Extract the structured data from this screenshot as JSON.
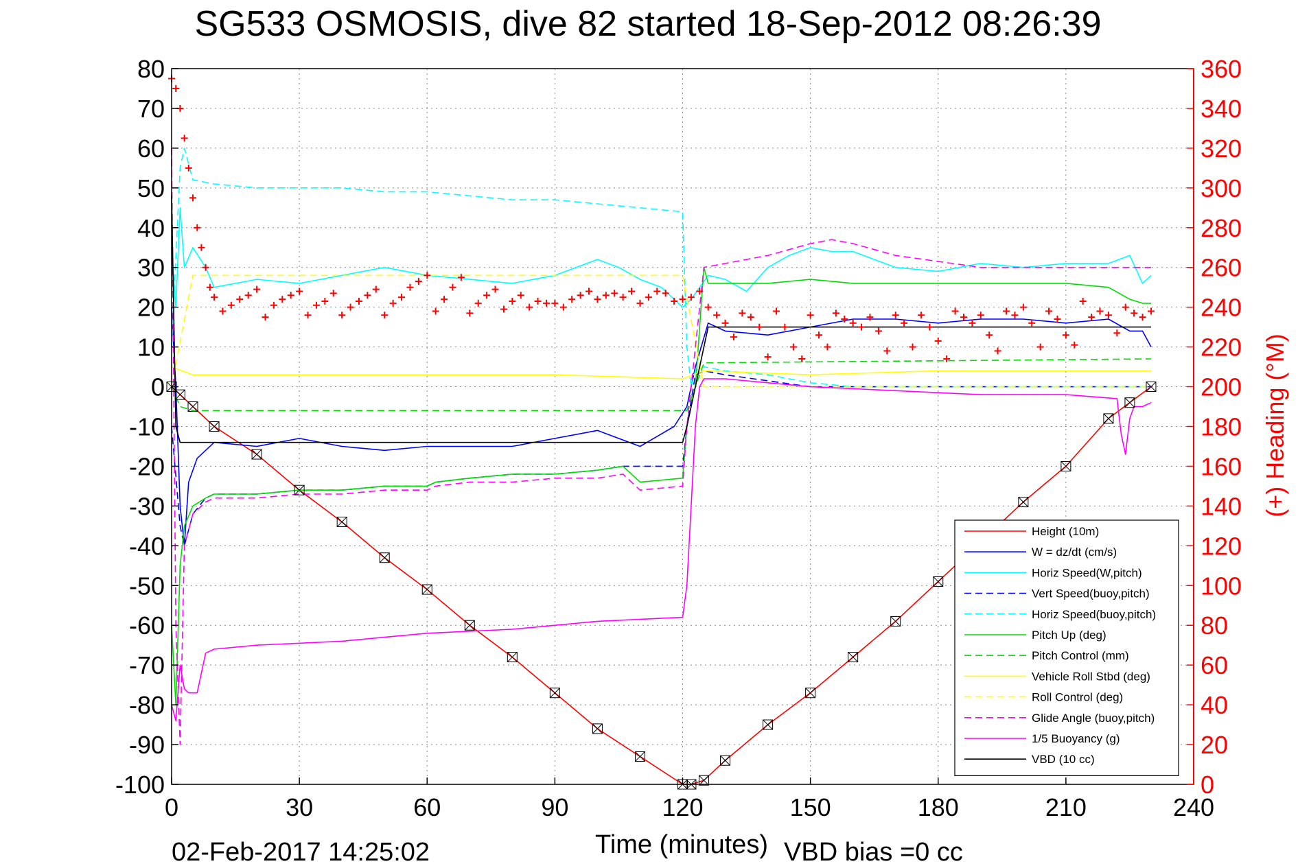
{
  "chart_data": {
    "type": "line",
    "title": "SG533 OSMOSIS, dive 82 started 18-Sep-2012 08:26:39",
    "xlabel": "Time (minutes)",
    "ylabel_right": "(+) Heading (°M)",
    "footer_date": "02-Feb-2017 14:25:02",
    "footer_vbd": "VBD bias =0 cc",
    "xlim": [
      0,
      240
    ],
    "ylim": [
      -100,
      80
    ],
    "y2lim": [
      0,
      360
    ],
    "x_ticks": [
      "0",
      "30",
      "60",
      "90",
      "120",
      "150",
      "180",
      "210",
      "240"
    ],
    "x_tick_values": [
      0,
      30,
      60,
      90,
      120,
      150,
      180,
      210,
      240
    ],
    "y_ticks": [
      "80",
      "70",
      "60",
      "50",
      "40",
      "30",
      "20",
      "10",
      "0",
      "-10",
      "-20",
      "-30",
      "-40",
      "-50",
      "-60",
      "-70",
      "-80",
      "-90",
      "-100"
    ],
    "y_tick_values": [
      80,
      70,
      60,
      50,
      40,
      30,
      20,
      10,
      0,
      -10,
      -20,
      -30,
      -40,
      -50,
      -60,
      -70,
      -80,
      -90,
      -100
    ],
    "y2_ticks": [
      "360",
      "340",
      "320",
      "300",
      "280",
      "260",
      "240",
      "220",
      "200",
      "180",
      "160",
      "140",
      "120",
      "100",
      "80",
      "60",
      "40",
      "20",
      "0"
    ],
    "y2_tick_values": [
      360,
      340,
      320,
      300,
      280,
      260,
      240,
      220,
      200,
      180,
      160,
      140,
      120,
      100,
      80,
      60,
      40,
      20,
      0
    ],
    "grid": true,
    "legend_position": "bottom-right",
    "series": [
      {
        "name": "Height (10m)",
        "color": "#ff0000",
        "style": "solid",
        "x": [
          0,
          2,
          5,
          10,
          20,
          30,
          40,
          50,
          60,
          70,
          80,
          90,
          100,
          110,
          120,
          122,
          125,
          130,
          140,
          150,
          160,
          170,
          180,
          190,
          200,
          210,
          220,
          225,
          230
        ],
        "values": [
          0,
          -2,
          -5,
          -10,
          -17,
          -26,
          -34,
          -43,
          -51,
          -60,
          -68,
          -77,
          -86,
          -93,
          -100,
          -100,
          -99,
          -94,
          -85,
          -77,
          -68,
          -59,
          -49,
          -39,
          -29,
          -20,
          -8,
          -4,
          0
        ]
      },
      {
        "name": "W = dz/dt (cm/s)",
        "color": "#0000ff",
        "style": "solid",
        "x": [
          0,
          1,
          2,
          3,
          4,
          6,
          10,
          20,
          30,
          40,
          50,
          60,
          70,
          80,
          90,
          100,
          110,
          118,
          121,
          123,
          126,
          130,
          140,
          150,
          160,
          170,
          180,
          190,
          200,
          210,
          220,
          225,
          228,
          230
        ],
        "values": [
          20,
          0,
          -30,
          -40,
          -24,
          -18,
          -14,
          -15,
          -13,
          -15,
          -16,
          -15,
          -15,
          -15,
          -13,
          -11,
          -15,
          -10,
          -5,
          5,
          16,
          14,
          13,
          15,
          17,
          17,
          16,
          17,
          17,
          16,
          17,
          14,
          14,
          10
        ]
      },
      {
        "name": "Horiz Speed(W,pitch)",
        "color": "#00ffff",
        "style": "solid",
        "x": [
          0,
          1,
          2,
          3,
          5,
          8,
          10,
          20,
          30,
          40,
          50,
          60,
          70,
          80,
          90,
          100,
          105,
          110,
          115,
          120,
          122,
          124,
          126,
          130,
          135,
          140,
          145,
          150,
          155,
          160,
          170,
          180,
          190,
          200,
          210,
          220,
          225,
          228,
          230
        ],
        "values": [
          35,
          20,
          45,
          30,
          35,
          30,
          25,
          27,
          26,
          28,
          30,
          28,
          27,
          26,
          28,
          32,
          30,
          27,
          25,
          20,
          22,
          25,
          28,
          27,
          24,
          30,
          33,
          35,
          34,
          34,
          30,
          29,
          31,
          30,
          31,
          31,
          33,
          26,
          28
        ]
      },
      {
        "name": "Vert Speed(buoy,pitch)",
        "color": "#0000ff",
        "style": "dashed",
        "x": [
          0,
          2,
          3,
          5,
          8,
          10,
          20,
          30,
          40,
          50,
          60,
          62,
          70,
          80,
          90,
          100,
          106,
          110,
          120,
          121,
          123,
          125,
          130,
          150,
          160,
          190,
          230
        ],
        "values": [
          -10,
          -35,
          -40,
          -32,
          -28,
          -27,
          -27,
          -26,
          -26,
          -25,
          -25,
          -24,
          -23,
          -22,
          -22,
          -21,
          -20,
          -20,
          -20,
          -10,
          3,
          4,
          3,
          0,
          0,
          0,
          0
        ]
      },
      {
        "name": "Horiz Speed(buoy,pitch)",
        "color": "#00ffff",
        "style": "dashed",
        "x": [
          0,
          2,
          3,
          5,
          10,
          20,
          30,
          40,
          50,
          60,
          70,
          80,
          90,
          100,
          110,
          120,
          121,
          122,
          123,
          125,
          130,
          140,
          150,
          160,
          170,
          230
        ],
        "values": [
          10,
          55,
          60,
          52,
          51,
          50,
          50,
          50,
          49,
          49,
          48,
          47,
          47,
          46,
          45,
          44,
          10,
          0,
          4,
          5,
          4,
          3,
          1,
          0,
          0,
          0
        ]
      },
      {
        "name": "Pitch Up (deg)",
        "color": "#00dd00",
        "style": "solid",
        "x": [
          0,
          1,
          2,
          3,
          5,
          8,
          10,
          20,
          30,
          40,
          50,
          60,
          62,
          70,
          80,
          90,
          100,
          106,
          110,
          120,
          121,
          123,
          125,
          126,
          130,
          140,
          150,
          160,
          170,
          180,
          190,
          200,
          210,
          220,
          225,
          228,
          230
        ],
        "values": [
          -60,
          -80,
          -45,
          -35,
          -30,
          -28,
          -27,
          -27,
          -26,
          -26,
          -25,
          -25,
          -24,
          -23,
          -22,
          -22,
          -21,
          -20,
          -24,
          -23,
          -10,
          0,
          30,
          26,
          26,
          26,
          27,
          26,
          26,
          26,
          26,
          26,
          26,
          25,
          22,
          21,
          21
        ]
      },
      {
        "name": "Pitch Control (mm)",
        "color": "#00dd00",
        "style": "dashed",
        "x": [
          0,
          2,
          5,
          10,
          120,
          121,
          125,
          230
        ],
        "values": [
          0,
          -5,
          -6,
          -6,
          -6,
          -6,
          6,
          7
        ]
      },
      {
        "name": "Vehicle Roll Stbd (deg)",
        "color": "#ffff00",
        "style": "solid",
        "x": [
          0,
          5,
          10,
          30,
          60,
          90,
          120,
          125,
          150,
          180,
          210,
          230
        ],
        "values": [
          5,
          3,
          3,
          3,
          3,
          3,
          2,
          4,
          3,
          4,
          4,
          4
        ]
      },
      {
        "name": "Roll Control (deg)",
        "color": "#ffff00",
        "style": "dashed",
        "x": [
          0,
          5,
          10,
          30,
          60,
          90,
          120,
          125,
          150,
          180,
          210,
          230
        ],
        "values": [
          0,
          28,
          28,
          28,
          28,
          28,
          28,
          0,
          0,
          0,
          0,
          0
        ]
      },
      {
        "name": "Glide Angle (buoy,pitch)",
        "color": "#ff00ff",
        "style": "dashed",
        "x": [
          0,
          1,
          2,
          3,
          5,
          8,
          10,
          20,
          30,
          40,
          50,
          60,
          62,
          70,
          80,
          90,
          100,
          106,
          110,
          120,
          121,
          123,
          125,
          130,
          140,
          150,
          155,
          160,
          170,
          190,
          230
        ],
        "values": [
          60,
          -60,
          -90,
          -40,
          -32,
          -29,
          -28,
          -28,
          -27,
          -27,
          -26,
          -26,
          -25,
          -24,
          -24,
          -23,
          -23,
          -22,
          -26,
          -25,
          -10,
          10,
          30,
          31,
          33,
          36,
          37,
          36,
          33,
          30,
          30
        ]
      },
      {
        "name": "1/5 Buoyancy (g)",
        "color": "#ff00ff",
        "style": "solid",
        "x": [
          0,
          1,
          2,
          3,
          4,
          5,
          6,
          8,
          10,
          20,
          40,
          60,
          80,
          100,
          120,
          121,
          122,
          123,
          124,
          125,
          130,
          150,
          170,
          190,
          210,
          222,
          223,
          224,
          225,
          226,
          228,
          230
        ],
        "values": [
          -80,
          -84,
          -70,
          -76,
          -77,
          -77,
          -77,
          -67,
          -66,
          -65,
          -64,
          -62,
          -61,
          -59,
          -58,
          -50,
          -30,
          -10,
          0,
          2,
          2,
          0,
          -1,
          -2,
          -2,
          -3,
          -12,
          -17,
          -8,
          -5,
          -5,
          -4
        ]
      },
      {
        "name": "VBD (10 cc)",
        "color": "#000000",
        "style": "solid",
        "x": [
          0,
          1,
          2,
          3,
          4,
          5,
          10,
          60,
          120,
          121,
          123,
          125,
          126,
          200,
          228,
          229,
          230
        ],
        "values": [
          48,
          -10,
          -14,
          -14,
          -14,
          -14,
          -14,
          -14,
          -14,
          -10,
          0,
          10,
          15,
          15,
          15,
          15,
          15
        ]
      }
    ],
    "heading": {
      "name": "(+) Heading",
      "color": "#ff0000",
      "axis": "right",
      "marker": "+",
      "x": [
        0,
        1,
        2,
        3,
        4,
        5,
        6,
        7,
        8,
        9,
        10,
        12,
        14,
        16,
        18,
        20,
        22,
        24,
        26,
        28,
        30,
        32,
        34,
        36,
        38,
        40,
        42,
        44,
        46,
        48,
        50,
        52,
        54,
        56,
        58,
        60,
        62,
        64,
        66,
        68,
        70,
        72,
        74,
        76,
        78,
        80,
        82,
        84,
        86,
        88,
        90,
        92,
        94,
        96,
        98,
        100,
        102,
        104,
        106,
        108,
        110,
        112,
        114,
        116,
        118,
        120,
        122,
        124,
        126,
        128,
        130,
        132,
        134,
        136,
        138,
        140,
        142,
        144,
        146,
        148,
        150,
        152,
        154,
        156,
        158,
        160,
        162,
        164,
        166,
        168,
        170,
        172,
        174,
        176,
        178,
        180,
        182,
        184,
        186,
        188,
        190,
        192,
        194,
        196,
        198,
        200,
        202,
        204,
        206,
        208,
        210,
        212,
        214,
        216,
        218,
        220,
        222,
        224,
        226,
        228,
        230
      ],
      "values": [
        355,
        350,
        340,
        325,
        310,
        295,
        280,
        270,
        260,
        250,
        245,
        238,
        241,
        244,
        246,
        249,
        235,
        241,
        244,
        246,
        248,
        236,
        241,
        243,
        247,
        236,
        240,
        243,
        246,
        249,
        236,
        242,
        245,
        250,
        253,
        256,
        238,
        244,
        250,
        255,
        237,
        242,
        246,
        249,
        239,
        243,
        246,
        240,
        243,
        242,
        242,
        240,
        244,
        246,
        248,
        244,
        246,
        247,
        245,
        248,
        242,
        245,
        248,
        247,
        243,
        244,
        245,
        248,
        240,
        236,
        232,
        225,
        237,
        235,
        230,
        215,
        238,
        230,
        220,
        214,
        236,
        226,
        220,
        237,
        234,
        232,
        230,
        235,
        228,
        218,
        236,
        232,
        220,
        236,
        230,
        223,
        214,
        238,
        235,
        232,
        236,
        226,
        218,
        238,
        236,
        240,
        232,
        220,
        238,
        234,
        226,
        221,
        243,
        235,
        238,
        236,
        227,
        240,
        237,
        235,
        238
      ]
    }
  }
}
